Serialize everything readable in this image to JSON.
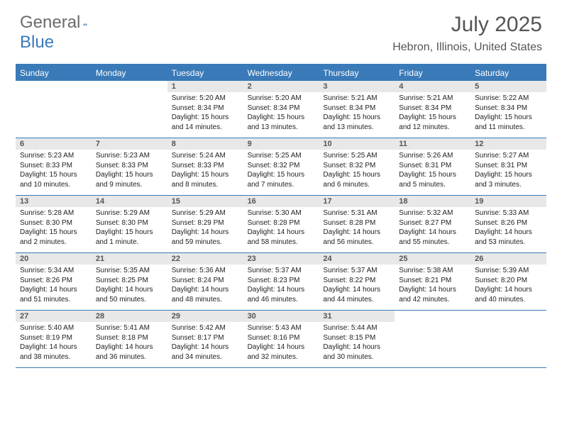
{
  "logo": {
    "text1": "General",
    "text2": "Blue"
  },
  "title": "July 2025",
  "location": "Hebron, Illinois, United States",
  "colors": {
    "accent": "#3a7ab8",
    "header_text": "#ffffff",
    "daynum_bg": "#e8e8e8",
    "body_text": "#222222",
    "title_text": "#555555"
  },
  "day_names": [
    "Sunday",
    "Monday",
    "Tuesday",
    "Wednesday",
    "Thursday",
    "Friday",
    "Saturday"
  ],
  "weeks": [
    [
      {
        "n": "",
        "sr": "",
        "ss": "",
        "dl": ""
      },
      {
        "n": "",
        "sr": "",
        "ss": "",
        "dl": ""
      },
      {
        "n": "1",
        "sr": "5:20 AM",
        "ss": "8:34 PM",
        "dl": "15 hours and 14 minutes."
      },
      {
        "n": "2",
        "sr": "5:20 AM",
        "ss": "8:34 PM",
        "dl": "15 hours and 13 minutes."
      },
      {
        "n": "3",
        "sr": "5:21 AM",
        "ss": "8:34 PM",
        "dl": "15 hours and 13 minutes."
      },
      {
        "n": "4",
        "sr": "5:21 AM",
        "ss": "8:34 PM",
        "dl": "15 hours and 12 minutes."
      },
      {
        "n": "5",
        "sr": "5:22 AM",
        "ss": "8:34 PM",
        "dl": "15 hours and 11 minutes."
      }
    ],
    [
      {
        "n": "6",
        "sr": "5:23 AM",
        "ss": "8:33 PM",
        "dl": "15 hours and 10 minutes."
      },
      {
        "n": "7",
        "sr": "5:23 AM",
        "ss": "8:33 PM",
        "dl": "15 hours and 9 minutes."
      },
      {
        "n": "8",
        "sr": "5:24 AM",
        "ss": "8:33 PM",
        "dl": "15 hours and 8 minutes."
      },
      {
        "n": "9",
        "sr": "5:25 AM",
        "ss": "8:32 PM",
        "dl": "15 hours and 7 minutes."
      },
      {
        "n": "10",
        "sr": "5:25 AM",
        "ss": "8:32 PM",
        "dl": "15 hours and 6 minutes."
      },
      {
        "n": "11",
        "sr": "5:26 AM",
        "ss": "8:31 PM",
        "dl": "15 hours and 5 minutes."
      },
      {
        "n": "12",
        "sr": "5:27 AM",
        "ss": "8:31 PM",
        "dl": "15 hours and 3 minutes."
      }
    ],
    [
      {
        "n": "13",
        "sr": "5:28 AM",
        "ss": "8:30 PM",
        "dl": "15 hours and 2 minutes."
      },
      {
        "n": "14",
        "sr": "5:29 AM",
        "ss": "8:30 PM",
        "dl": "15 hours and 1 minute."
      },
      {
        "n": "15",
        "sr": "5:29 AM",
        "ss": "8:29 PM",
        "dl": "14 hours and 59 minutes."
      },
      {
        "n": "16",
        "sr": "5:30 AM",
        "ss": "8:28 PM",
        "dl": "14 hours and 58 minutes."
      },
      {
        "n": "17",
        "sr": "5:31 AM",
        "ss": "8:28 PM",
        "dl": "14 hours and 56 minutes."
      },
      {
        "n": "18",
        "sr": "5:32 AM",
        "ss": "8:27 PM",
        "dl": "14 hours and 55 minutes."
      },
      {
        "n": "19",
        "sr": "5:33 AM",
        "ss": "8:26 PM",
        "dl": "14 hours and 53 minutes."
      }
    ],
    [
      {
        "n": "20",
        "sr": "5:34 AM",
        "ss": "8:26 PM",
        "dl": "14 hours and 51 minutes."
      },
      {
        "n": "21",
        "sr": "5:35 AM",
        "ss": "8:25 PM",
        "dl": "14 hours and 50 minutes."
      },
      {
        "n": "22",
        "sr": "5:36 AM",
        "ss": "8:24 PM",
        "dl": "14 hours and 48 minutes."
      },
      {
        "n": "23",
        "sr": "5:37 AM",
        "ss": "8:23 PM",
        "dl": "14 hours and 46 minutes."
      },
      {
        "n": "24",
        "sr": "5:37 AM",
        "ss": "8:22 PM",
        "dl": "14 hours and 44 minutes."
      },
      {
        "n": "25",
        "sr": "5:38 AM",
        "ss": "8:21 PM",
        "dl": "14 hours and 42 minutes."
      },
      {
        "n": "26",
        "sr": "5:39 AM",
        "ss": "8:20 PM",
        "dl": "14 hours and 40 minutes."
      }
    ],
    [
      {
        "n": "27",
        "sr": "5:40 AM",
        "ss": "8:19 PM",
        "dl": "14 hours and 38 minutes."
      },
      {
        "n": "28",
        "sr": "5:41 AM",
        "ss": "8:18 PM",
        "dl": "14 hours and 36 minutes."
      },
      {
        "n": "29",
        "sr": "5:42 AM",
        "ss": "8:17 PM",
        "dl": "14 hours and 34 minutes."
      },
      {
        "n": "30",
        "sr": "5:43 AM",
        "ss": "8:16 PM",
        "dl": "14 hours and 32 minutes."
      },
      {
        "n": "31",
        "sr": "5:44 AM",
        "ss": "8:15 PM",
        "dl": "14 hours and 30 minutes."
      },
      {
        "n": "",
        "sr": "",
        "ss": "",
        "dl": ""
      },
      {
        "n": "",
        "sr": "",
        "ss": "",
        "dl": ""
      }
    ]
  ],
  "labels": {
    "sunrise": "Sunrise: ",
    "sunset": "Sunset: ",
    "daylight": "Daylight: "
  }
}
